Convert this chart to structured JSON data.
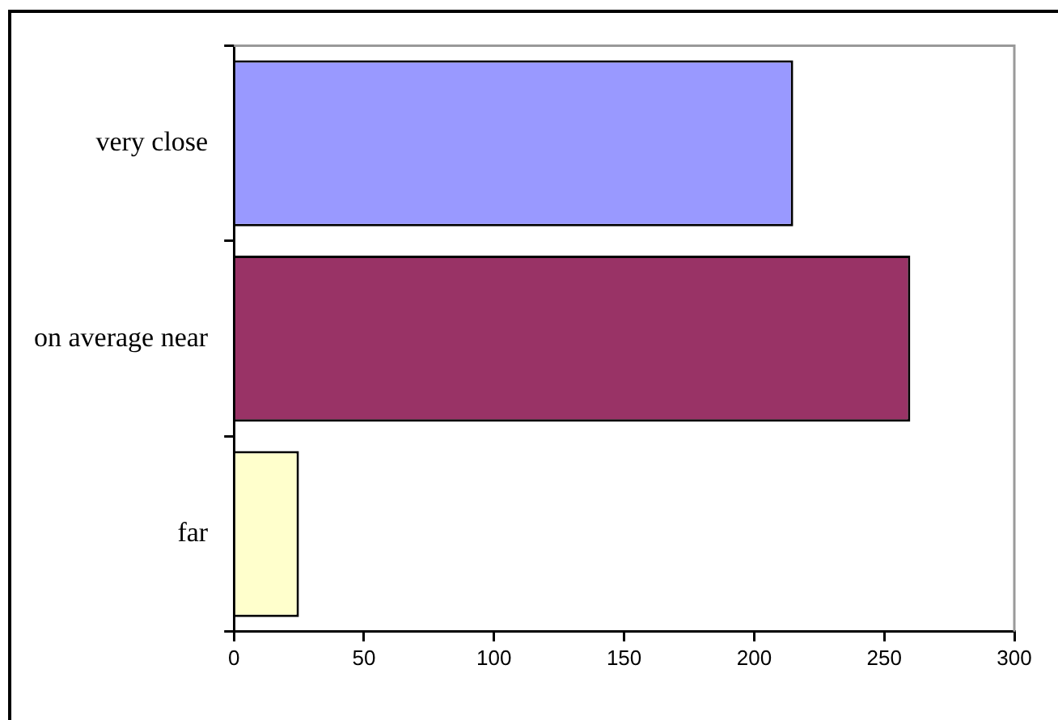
{
  "chart_data": {
    "type": "bar",
    "orientation": "horizontal",
    "categories": [
      "very close",
      "on average near",
      "far"
    ],
    "values": [
      215,
      260,
      25
    ],
    "colors": [
      "#9999ff",
      "#993366",
      "#ffffcc"
    ],
    "xlim": [
      0,
      300
    ],
    "xticks": [
      0,
      50,
      100,
      150,
      200,
      250,
      300
    ]
  }
}
